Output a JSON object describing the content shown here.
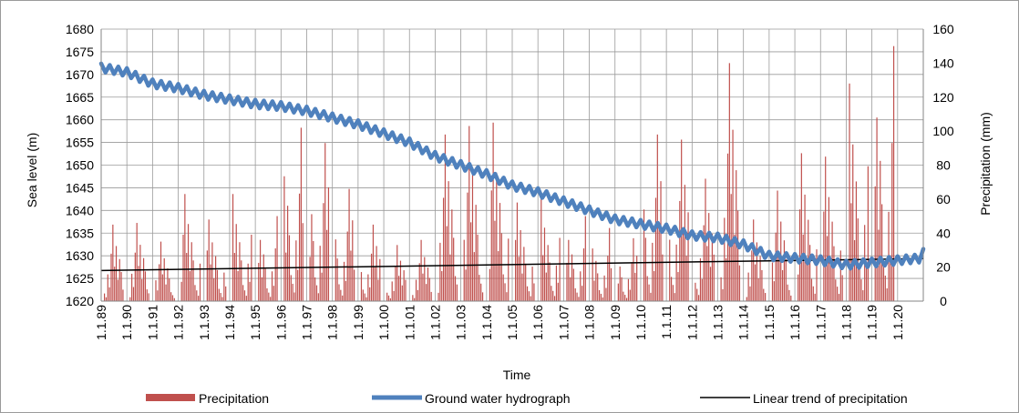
{
  "chart_data": {
    "type": "bar+line",
    "title": "",
    "xlabel": "Time",
    "ylabel_left": "Sea level (m)",
    "ylabel_right": "Precipitation (mm)",
    "ylim_left": [
      1620,
      1680
    ],
    "yticks_left": [
      1620,
      1625,
      1630,
      1635,
      1640,
      1645,
      1650,
      1655,
      1660,
      1665,
      1670,
      1675,
      1680
    ],
    "ylim_right": [
      0,
      160
    ],
    "yticks_right": [
      0,
      20,
      40,
      60,
      80,
      100,
      120,
      140,
      160
    ],
    "x_tick_labels": [
      "1.1.89",
      "1.1.90",
      "1.1.91",
      "1.1.92",
      "1.1.93",
      "1.1.94",
      "1.1.95",
      "1.1.96",
      "1.1.97",
      "1.1.98",
      "1.1.99",
      "1.1.00",
      "1.1.01",
      "1.1.02",
      "1.1.03",
      "1.1.04",
      "1.1.05",
      "1.1.06",
      "1.1.07",
      "1.1.08",
      "1.1.09",
      "1.1.10",
      "1.1.11",
      "1.1.12",
      "1.1.13",
      "1.1.14",
      "1.1.15",
      "1.1.16",
      "1.1.17",
      "1.1.18",
      "1.1.19",
      "1.1.20"
    ],
    "grid": true,
    "legend_position": "bottom",
    "series": [
      {
        "name": "Precipitation",
        "type": "bar",
        "axis": "right",
        "color": "#c0504d",
        "yearly_peaks": [
          45,
          46,
          35,
          63,
          48,
          63,
          50,
          102,
          93,
          66,
          45,
          33,
          36,
          98,
          103,
          105,
          58,
          60,
          50,
          43,
          37,
          98,
          95,
          72,
          140,
          48,
          65,
          87,
          85,
          128,
          150,
          0
        ]
      },
      {
        "name": "Ground water hydrograph",
        "type": "line",
        "axis": "left",
        "color": "#4f81bd",
        "yearly_values": [
          1671.5,
          1670.5,
          1668,
          1667,
          1665.5,
          1664.5,
          1663.5,
          1663,
          1662,
          1660.5,
          1659,
          1657,
          1655,
          1652,
          1650,
          1648,
          1645.5,
          1644,
          1642,
          1640,
          1638,
          1637,
          1636,
          1634.5,
          1634,
          1632.5,
          1630,
          1629.5,
          1629,
          1628,
          1628.5,
          1629
        ]
      },
      {
        "name": "Linear trend of precipitation",
        "type": "line",
        "axis": "right",
        "color": "#000000",
        "start": 18,
        "end": 25
      }
    ]
  }
}
